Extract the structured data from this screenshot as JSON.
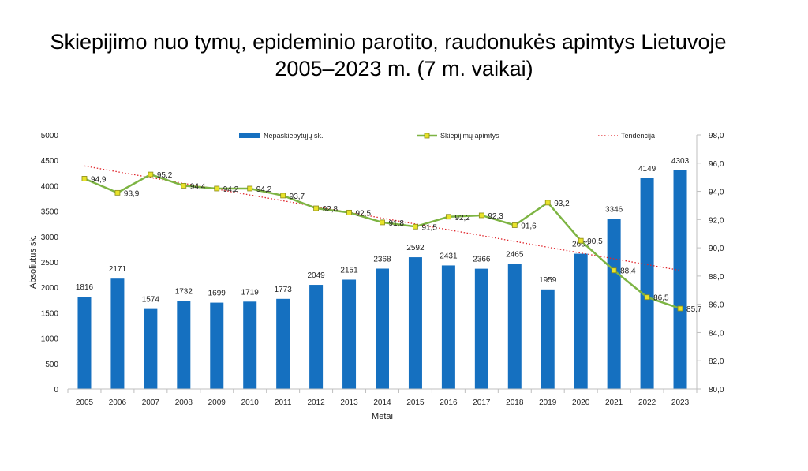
{
  "title_line1": "Skiepijimo nuo tymų, epideminio parotito, raudonukės apimtys Lietuvoje",
  "title_line2": "2005–2023 m. (7 m. vaikai)",
  "chart_data": {
    "type": "bar",
    "title": "Skiepijimo nuo tymų, epideminio parotito, raudonukės apimtys Lietuvoje 2005–2023 m. (7 m. vaikai)",
    "xlabel": "Metai",
    "ylabel": "Absoliutus sk.",
    "categories": [
      "2005",
      "2006",
      "2007",
      "2008",
      "2009",
      "2010",
      "2011",
      "2012",
      "2013",
      "2014",
      "2015",
      "2016",
      "2017",
      "2018",
      "2019",
      "2020",
      "2021",
      "2022",
      "2023"
    ],
    "ylim": [
      0,
      5000
    ],
    "y2lim": [
      80,
      98
    ],
    "yticks": [
      "0",
      "500",
      "1000",
      "1500",
      "2000",
      "2500",
      "3000",
      "3500",
      "4000",
      "4500",
      "5000"
    ],
    "y2ticks": [
      "80,0",
      "82,0",
      "84,0",
      "86,0",
      "88,0",
      "90,0",
      "92,0",
      "94,0",
      "96,0",
      "98,0"
    ],
    "legend_position": "top",
    "series": [
      {
        "name": "Nepaskiepytųjų sk.",
        "type": "bar",
        "axis": "left",
        "color": "#1570C0",
        "values": [
          1816,
          2171,
          1574,
          1732,
          1699,
          1719,
          1773,
          2049,
          2151,
          2368,
          2592,
          2431,
          2366,
          2465,
          1959,
          2662,
          3346,
          4149,
          4303
        ],
        "labels": [
          "1816",
          "2171",
          "1574",
          "1732",
          "1699",
          "1719",
          "1773",
          "2049",
          "2151",
          "2368",
          "2592",
          "2431",
          "2366",
          "2465",
          "1959",
          "2662",
          "3346",
          "4149",
          "4303"
        ]
      },
      {
        "name": "Skiepijimų apimtys",
        "type": "line",
        "axis": "right",
        "color": "#7DB443",
        "marker_color": "#E8E32A",
        "values": [
          94.9,
          93.9,
          95.2,
          94.4,
          94.2,
          94.2,
          93.7,
          92.8,
          92.5,
          91.8,
          91.5,
          92.2,
          92.3,
          91.6,
          93.2,
          90.5,
          88.4,
          86.5,
          85.7
        ],
        "labels": [
          "94,9",
          "93,9",
          "95,2",
          "94,4",
          "94,2",
          "94,2",
          "93,7",
          "92,8",
          "92,5",
          "91,8",
          "91,5",
          "92,2",
          "92,3",
          "91,6",
          "93,2",
          "90,5",
          "88,4",
          "86,5",
          "85,7"
        ]
      },
      {
        "name": "Tendencija",
        "type": "trendline",
        "axis": "right",
        "color": "#E0252B",
        "style": "dotted",
        "start_value": 95.8,
        "end_value": 88.4
      }
    ]
  }
}
